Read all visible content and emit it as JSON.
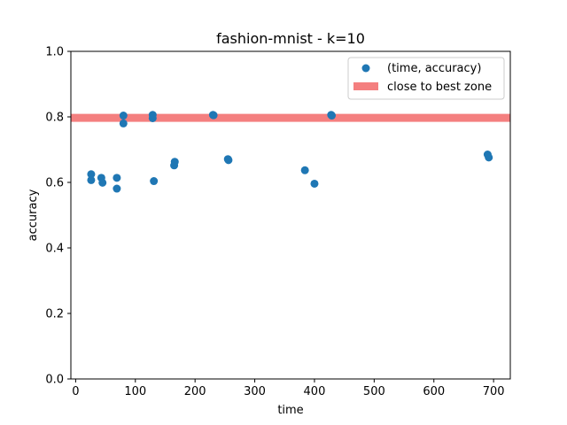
{
  "chart_data": {
    "type": "scatter",
    "title": "fashion-mnist - k=10",
    "xlabel": "time",
    "ylabel": "accuracy",
    "xlim": [
      -8,
      728
    ],
    "ylim": [
      0.0,
      1.0
    ],
    "xticks": [
      0,
      100,
      200,
      300,
      400,
      500,
      600,
      700
    ],
    "yticks": [
      0.0,
      0.2,
      0.4,
      0.6,
      0.8,
      1.0
    ],
    "xtick_labels": [
      "0",
      "100",
      "200",
      "300",
      "400",
      "500",
      "600",
      "700"
    ],
    "ytick_labels": [
      "0.0",
      "0.2",
      "0.4",
      "0.6",
      "0.8",
      "1.0"
    ],
    "grid": false,
    "legend_position": "top-right",
    "colors": {
      "points": "#1f77b4",
      "zone": "#f47f7f"
    },
    "band": {
      "name": "close to best zone",
      "y": 0.797
    },
    "series": [
      {
        "name": "(time, accuracy)",
        "x": [
          26,
          26,
          43,
          45,
          69,
          69,
          80,
          80,
          129,
          129,
          131,
          165,
          166,
          230,
          231,
          255,
          256,
          384,
          400,
          428,
          429,
          690,
          692
        ],
        "y": [
          0.625,
          0.607,
          0.614,
          0.599,
          0.614,
          0.581,
          0.804,
          0.78,
          0.806,
          0.796,
          0.604,
          0.652,
          0.663,
          0.806,
          0.805,
          0.671,
          0.668,
          0.637,
          0.596,
          0.806,
          0.804,
          0.685,
          0.676
        ]
      }
    ]
  }
}
